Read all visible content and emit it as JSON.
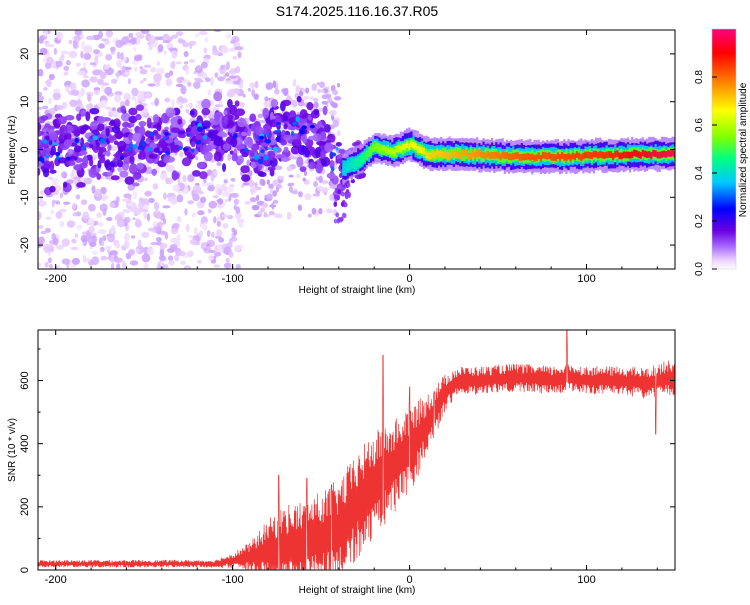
{
  "figure": {
    "title": "S174.2025.116.16.37.R05"
  },
  "chart_data": [
    {
      "type": "heatmap",
      "title": "S174.2025.116.16.37.R05",
      "xlabel": "Height of straight line (km)",
      "ylabel": "Frequency (Hz)",
      "xlim": [
        -210,
        150
      ],
      "ylim": [
        -25,
        25
      ],
      "xticks": [
        -200,
        -100,
        0,
        100
      ],
      "yticks": [
        -20,
        -10,
        0,
        10,
        20
      ],
      "colorbar": {
        "label": "Normalized spectral amplitude",
        "range": [
          0,
          1
        ],
        "ticks": [
          0.0,
          0.2,
          0.4,
          0.6,
          0.8
        ],
        "tick_labels": [
          "0.0",
          "0.2",
          "0.4",
          "0.6",
          "0.8"
        ],
        "stops": [
          "#ffffff",
          "#e8ccff",
          "#a060ff",
          "#6a00e0",
          "#0000ff",
          "#00c8ff",
          "#00ff80",
          "#80ff00",
          "#ffff00",
          "#ff8000",
          "#ff0000",
          "#ff0080"
        ]
      },
      "ridge": [
        {
          "x": -210,
          "f": 0.0,
          "a": 0.32
        },
        {
          "x": -180,
          "f": 0.5,
          "a": 0.33
        },
        {
          "x": -150,
          "f": 1.0,
          "a": 0.34
        },
        {
          "x": -120,
          "f": 2.5,
          "a": 0.33
        },
        {
          "x": -100,
          "f": 4.0,
          "a": 0.32
        },
        {
          "x": -85,
          "f": 0.0,
          "a": 0.34
        },
        {
          "x": -75,
          "f": 3.0,
          "a": 0.35
        },
        {
          "x": -60,
          "f": 3.5,
          "a": 0.36
        },
        {
          "x": -48,
          "f": 1.0,
          "a": 0.34
        },
        {
          "x": -38,
          "f": -4.0,
          "a": 0.38
        },
        {
          "x": -28,
          "f": -2.0,
          "a": 0.45
        },
        {
          "x": -20,
          "f": 0.5,
          "a": 0.55
        },
        {
          "x": -10,
          "f": -0.5,
          "a": 0.6
        },
        {
          "x": 0,
          "f": 1.0,
          "a": 0.65
        },
        {
          "x": 10,
          "f": -1.0,
          "a": 0.7
        },
        {
          "x": 30,
          "f": -1.0,
          "a": 0.75
        },
        {
          "x": 60,
          "f": -1.5,
          "a": 0.82
        },
        {
          "x": 85,
          "f": -1.5,
          "a": 0.84
        },
        {
          "x": 110,
          "f": -1.2,
          "a": 0.86
        },
        {
          "x": 130,
          "f": -1.0,
          "a": 0.92
        },
        {
          "x": 150,
          "f": -1.0,
          "a": 0.97
        }
      ]
    },
    {
      "type": "line",
      "xlabel": "Height of straight line (km)",
      "ylabel": "SNR (10 * v/v)",
      "xlim": [
        -210,
        150
      ],
      "ylim": [
        0,
        760
      ],
      "xticks": [
        -200,
        -100,
        0,
        100
      ],
      "yticks": [
        0,
        200,
        400,
        600
      ],
      "color": "#ee3333",
      "envelope": {
        "x": [
          -210,
          -160,
          -110,
          -100,
          -90,
          -80,
          -70,
          -60,
          -50,
          -40,
          -30,
          -20,
          -10,
          0,
          10,
          20,
          25,
          30,
          40,
          60,
          80,
          90,
          100,
          120,
          135,
          140,
          150
        ],
        "mean": [
          20,
          20,
          20,
          30,
          40,
          60,
          70,
          80,
          100,
          120,
          200,
          270,
          320,
          380,
          460,
          560,
          590,
          600,
          600,
          610,
          600,
          610,
          600,
          600,
          590,
          600,
          610
        ],
        "amp": [
          12,
          12,
          12,
          25,
          50,
          100,
          140,
          140,
          150,
          170,
          170,
          170,
          150,
          140,
          100,
          60,
          50,
          45,
          45,
          45,
          45,
          45,
          45,
          45,
          50,
          55,
          60
        ]
      },
      "spikes": [
        {
          "x": -74,
          "y": 300
        },
        {
          "x": -58,
          "y": 290
        },
        {
          "x": -44,
          "y": 270
        },
        {
          "x": -15,
          "y": 680
        },
        {
          "x": 0,
          "y": 580
        },
        {
          "x": 14,
          "y": 565
        },
        {
          "x": 89,
          "y": 760
        },
        {
          "x": 139,
          "y": 430
        }
      ]
    }
  ]
}
